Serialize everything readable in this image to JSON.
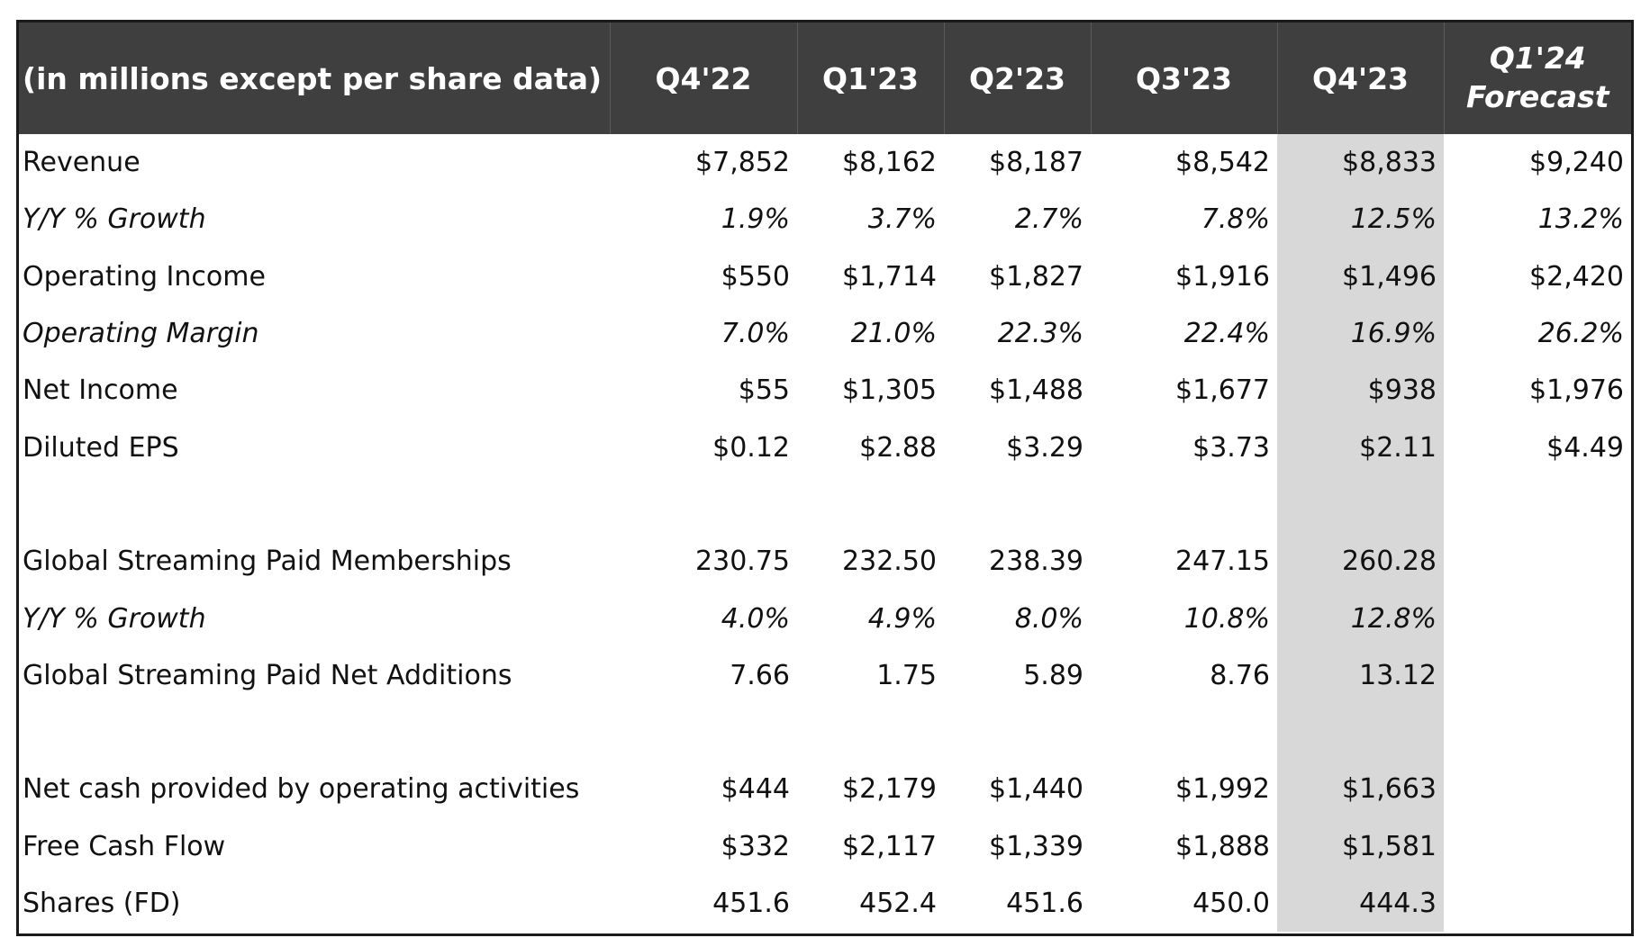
{
  "header": {
    "label": "(in millions except per share data)",
    "columns": [
      "Q4'22",
      "Q1'23",
      "Q2'23",
      "Q3'23",
      "Q4'23"
    ],
    "forecast_line1": "Q1'24",
    "forecast_line2": "Forecast"
  },
  "highlight_color": "#d8d8d8",
  "header_color": "#3f3f3f",
  "rows": [
    {
      "label": "Revenue",
      "italic": false,
      "values": [
        "$7,852",
        "$8,162",
        "$8,187",
        "$8,542",
        "$8,833",
        "$9,240"
      ]
    },
    {
      "label": "Y/Y % Growth",
      "italic": true,
      "values": [
        "1.9%",
        "3.7%",
        "2.7%",
        "7.8%",
        "12.5%",
        "13.2%"
      ]
    },
    {
      "label": "Operating Income",
      "italic": false,
      "values": [
        "$550",
        "$1,714",
        "$1,827",
        "$1,916",
        "$1,496",
        "$2,420"
      ]
    },
    {
      "label": "Operating Margin",
      "italic": true,
      "values": [
        "7.0%",
        "21.0%",
        "22.3%",
        "22.4%",
        "16.9%",
        "26.2%"
      ]
    },
    {
      "label": "Net Income",
      "italic": false,
      "values": [
        "$55",
        "$1,305",
        "$1,488",
        "$1,677",
        "$938",
        "$1,976"
      ]
    },
    {
      "label": "Diluted EPS",
      "italic": false,
      "values": [
        "$0.12",
        "$2.88",
        "$3.29",
        "$3.73",
        "$2.11",
        "$4.49"
      ]
    },
    {
      "spacer": true
    },
    {
      "label": "Global Streaming Paid Memberships",
      "italic": false,
      "values": [
        "230.75",
        "232.50",
        "238.39",
        "247.15",
        "260.28",
        ""
      ]
    },
    {
      "label": "Y/Y % Growth",
      "italic": true,
      "values": [
        "4.0%",
        "4.9%",
        "8.0%",
        "10.8%",
        "12.8%",
        ""
      ]
    },
    {
      "label": "Global Streaming Paid Net Additions",
      "italic": false,
      "values": [
        "7.66",
        "1.75",
        "5.89",
        "8.76",
        "13.12",
        ""
      ]
    },
    {
      "spacer": true
    },
    {
      "label": "Net cash provided by operating activities",
      "italic": false,
      "values": [
        "$444",
        "$2,179",
        "$1,440",
        "$1,992",
        "$1,663",
        ""
      ]
    },
    {
      "label": "Free Cash Flow",
      "italic": false,
      "values": [
        "$332",
        "$2,117",
        "$1,339",
        "$1,888",
        "$1,581",
        ""
      ]
    },
    {
      "label": "Shares (FD)",
      "italic": false,
      "values": [
        "451.6",
        "452.4",
        "451.6",
        "450.0",
        "444.3",
        ""
      ]
    }
  ]
}
